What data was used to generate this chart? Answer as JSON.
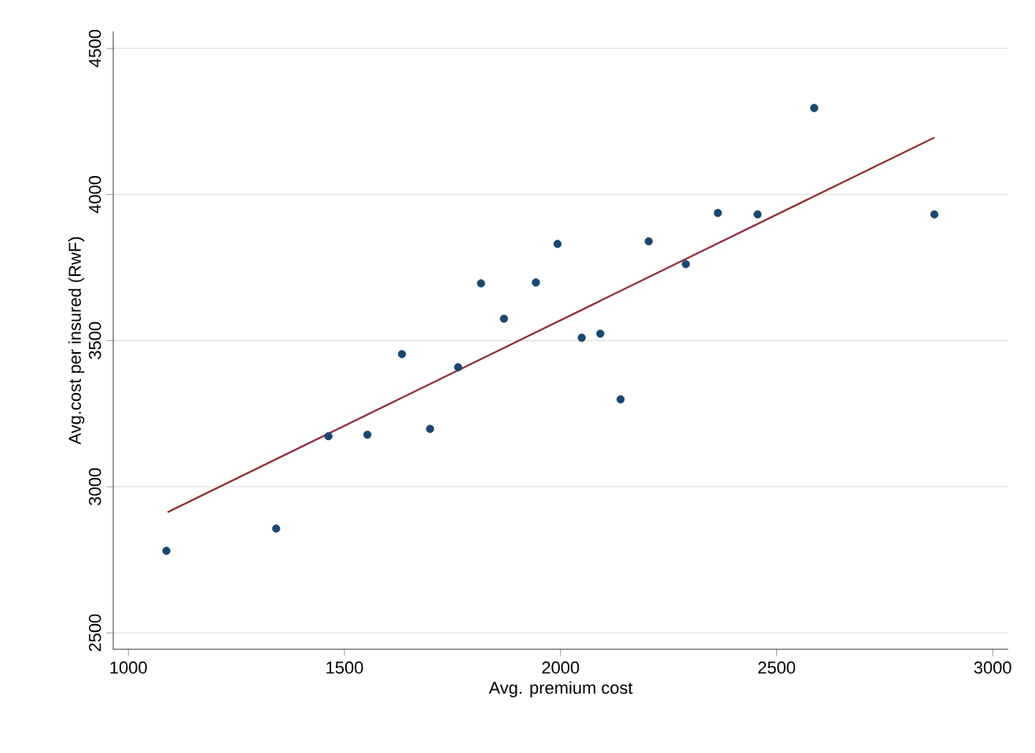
{
  "chart_data": {
    "type": "scatter",
    "xlabel": "Avg. premium cost",
    "ylabel": "Avg.cost per insured (RwF)",
    "series": [
      {
        "color": "#1a476f",
        "x": [
          1088,
          1342,
          1463,
          1553,
          1633,
          1698,
          1763,
          1816,
          1869,
          1943,
          1993,
          2049,
          2092,
          2139,
          2204,
          2290,
          2364,
          2456,
          2587,
          2865
        ],
        "values": [
          2781,
          2857,
          3173,
          3178,
          3454,
          3198,
          3409,
          3696,
          3575,
          3699,
          3831,
          3510,
          3524,
          3299,
          3840,
          3762,
          3937,
          3932,
          4296,
          3932
        ]
      },
      {
        "type": "line",
        "color": "#90353b",
        "marker": "none",
        "x": [
          1091,
          2865
        ],
        "values": [
          2913,
          4195
        ]
      }
    ],
    "xlim": [
      965,
      3036
    ],
    "ylim": [
      2444,
      4558
    ],
    "xticks": [
      1000,
      1500,
      2000,
      2500,
      3000
    ],
    "yticks": [
      2500,
      3000,
      3500,
      4000,
      4500
    ],
    "grid": "y",
    "marker": "circle"
  }
}
